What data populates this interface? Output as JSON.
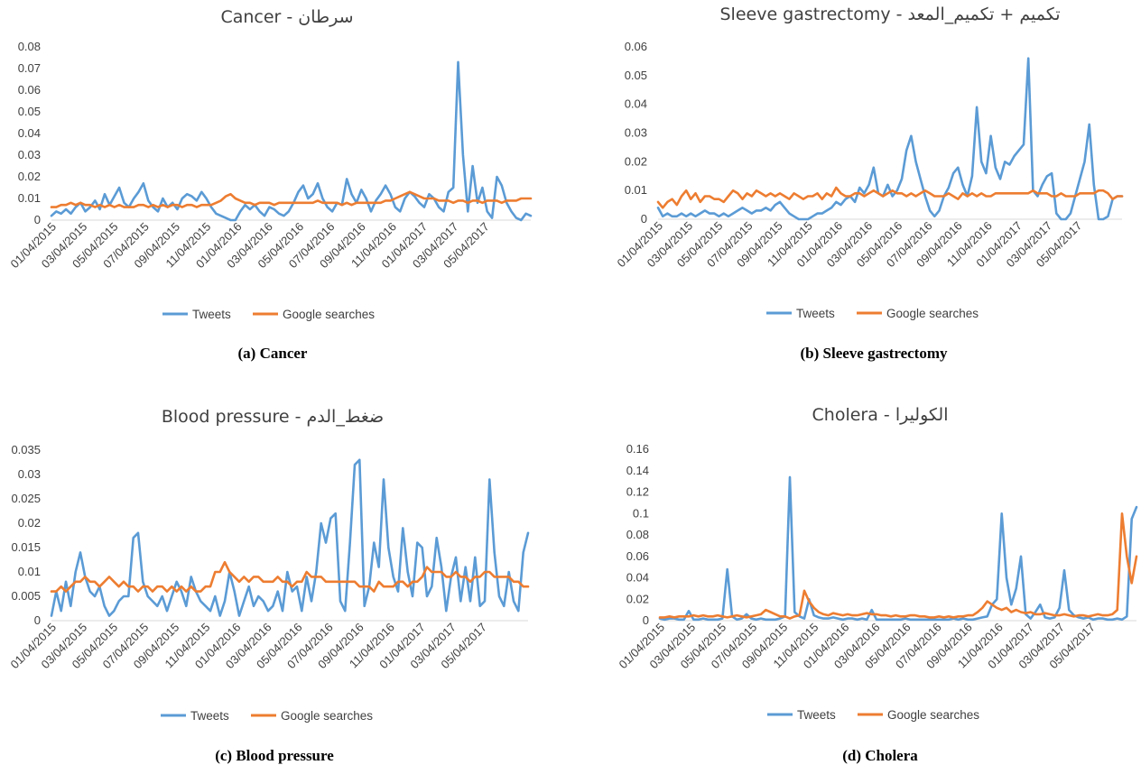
{
  "chart_data": [
    {
      "type": "line",
      "title": "Cancer - سرطان",
      "caption": "(a) Cancer",
      "x_ticks": [
        "01/04/2015",
        "03/04/2015",
        "05/04/2015",
        "07/04/2015",
        "09/04/2015",
        "11/04/2015",
        "01/04/2016",
        "03/04/2016",
        "05/04/2016",
        "07/04/2016",
        "09/04/2016",
        "11/04/2016",
        "01/04/2017",
        "03/04/2017",
        "05/04/2017"
      ],
      "y_ticks": [
        "0",
        "0.01",
        "0.02",
        "0.03",
        "0.04",
        "0.05",
        "0.06",
        "0.07",
        "0.08"
      ],
      "ylim": [
        0,
        0.08
      ],
      "legend_position": "bottom",
      "series": [
        {
          "name": "Tweets",
          "color": "#5B9BD5",
          "values": [
            0.002,
            0.004,
            0.003,
            0.005,
            0.003,
            0.006,
            0.008,
            0.004,
            0.006,
            0.009,
            0.005,
            0.012,
            0.007,
            0.011,
            0.015,
            0.008,
            0.006,
            0.01,
            0.013,
            0.017,
            0.009,
            0.006,
            0.004,
            0.01,
            0.006,
            0.008,
            0.005,
            0.01,
            0.012,
            0.011,
            0.009,
            0.013,
            0.01,
            0.006,
            0.003,
            0.002,
            0.001,
            0.0,
            0.0,
            0.004,
            0.007,
            0.005,
            0.007,
            0.004,
            0.002,
            0.006,
            0.005,
            0.003,
            0.002,
            0.004,
            0.008,
            0.013,
            0.016,
            0.01,
            0.012,
            0.017,
            0.01,
            0.006,
            0.004,
            0.008,
            0.007,
            0.019,
            0.012,
            0.008,
            0.014,
            0.01,
            0.004,
            0.009,
            0.012,
            0.016,
            0.012,
            0.006,
            0.004,
            0.01,
            0.013,
            0.011,
            0.008,
            0.006,
            0.012,
            0.01,
            0.006,
            0.004,
            0.013,
            0.015,
            0.073,
            0.03,
            0.004,
            0.025,
            0.008,
            0.015,
            0.004,
            0.001,
            0.02,
            0.016,
            0.008,
            0.004,
            0.001,
            0.0,
            0.003,
            0.002
          ]
        },
        {
          "name": "Google searches",
          "color": "#ED7D31",
          "values": [
            0.006,
            0.006,
            0.007,
            0.007,
            0.008,
            0.007,
            0.008,
            0.007,
            0.007,
            0.006,
            0.007,
            0.006,
            0.007,
            0.006,
            0.007,
            0.006,
            0.006,
            0.006,
            0.007,
            0.007,
            0.006,
            0.007,
            0.006,
            0.007,
            0.006,
            0.007,
            0.007,
            0.006,
            0.007,
            0.007,
            0.006,
            0.007,
            0.007,
            0.007,
            0.008,
            0.009,
            0.011,
            0.012,
            0.01,
            0.009,
            0.008,
            0.008,
            0.007,
            0.008,
            0.008,
            0.008,
            0.007,
            0.008,
            0.008,
            0.008,
            0.008,
            0.008,
            0.008,
            0.008,
            0.008,
            0.009,
            0.008,
            0.008,
            0.008,
            0.008,
            0.007,
            0.008,
            0.007,
            0.008,
            0.008,
            0.008,
            0.008,
            0.008,
            0.008,
            0.009,
            0.009,
            0.01,
            0.011,
            0.012,
            0.013,
            0.012,
            0.011,
            0.01,
            0.01,
            0.01,
            0.009,
            0.009,
            0.009,
            0.008,
            0.009,
            0.009,
            0.008,
            0.009,
            0.009,
            0.008,
            0.009,
            0.009,
            0.009,
            0.008,
            0.009,
            0.009,
            0.009,
            0.01,
            0.01,
            0.01
          ]
        }
      ]
    },
    {
      "type": "line",
      "title": "Sleeve gastrectomy - تكميم + تكميم_المعد",
      "caption": "(b) Sleeve gastrectomy",
      "x_ticks": [
        "01/04/2015",
        "03/04/2015",
        "05/04/2015",
        "07/04/2015",
        "09/04/2015",
        "11/04/2015",
        "01/04/2016",
        "03/04/2016",
        "05/04/2016",
        "07/04/2016",
        "09/04/2016",
        "11/04/2016",
        "01/04/2017",
        "03/04/2017",
        "05/04/2017"
      ],
      "y_ticks": [
        "0",
        "0.01",
        "0.02",
        "0.03",
        "0.04",
        "0.05",
        "0.06"
      ],
      "ylim": [
        0,
        0.06
      ],
      "legend_position": "bottom",
      "series": [
        {
          "name": "Tweets",
          "color": "#5B9BD5",
          "values": [
            0.004,
            0.001,
            0.002,
            0.001,
            0.001,
            0.002,
            0.001,
            0.002,
            0.001,
            0.002,
            0.003,
            0.002,
            0.002,
            0.001,
            0.002,
            0.001,
            0.002,
            0.003,
            0.004,
            0.003,
            0.002,
            0.003,
            0.003,
            0.004,
            0.003,
            0.005,
            0.006,
            0.004,
            0.002,
            0.001,
            0.0,
            0.0,
            0.0,
            0.001,
            0.002,
            0.002,
            0.003,
            0.004,
            0.006,
            0.005,
            0.007,
            0.008,
            0.006,
            0.011,
            0.009,
            0.012,
            0.018,
            0.009,
            0.008,
            0.012,
            0.008,
            0.01,
            0.014,
            0.024,
            0.029,
            0.02,
            0.014,
            0.008,
            0.003,
            0.001,
            0.003,
            0.008,
            0.011,
            0.016,
            0.018,
            0.012,
            0.008,
            0.015,
            0.039,
            0.02,
            0.016,
            0.029,
            0.018,
            0.014,
            0.02,
            0.019,
            0.022,
            0.024,
            0.026,
            0.056,
            0.01,
            0.008,
            0.012,
            0.015,
            0.016,
            0.002,
            0.0,
            0.0,
            0.002,
            0.008,
            0.014,
            0.02,
            0.033,
            0.012,
            0.0,
            0.0,
            0.001,
            0.007,
            0.008,
            0.008
          ]
        },
        {
          "name": "Google searches",
          "color": "#ED7D31",
          "values": [
            0.006,
            0.004,
            0.006,
            0.007,
            0.005,
            0.008,
            0.01,
            0.007,
            0.009,
            0.006,
            0.008,
            0.008,
            0.007,
            0.007,
            0.006,
            0.008,
            0.01,
            0.009,
            0.007,
            0.009,
            0.008,
            0.01,
            0.009,
            0.008,
            0.009,
            0.008,
            0.009,
            0.008,
            0.007,
            0.009,
            0.008,
            0.007,
            0.008,
            0.008,
            0.009,
            0.007,
            0.009,
            0.008,
            0.011,
            0.009,
            0.008,
            0.008,
            0.009,
            0.009,
            0.008,
            0.009,
            0.01,
            0.009,
            0.008,
            0.009,
            0.01,
            0.009,
            0.009,
            0.008,
            0.009,
            0.008,
            0.009,
            0.01,
            0.009,
            0.008,
            0.008,
            0.008,
            0.009,
            0.008,
            0.007,
            0.009,
            0.008,
            0.009,
            0.008,
            0.009,
            0.008,
            0.008,
            0.009,
            0.009,
            0.009,
            0.009,
            0.009,
            0.009,
            0.009,
            0.009,
            0.01,
            0.009,
            0.009,
            0.009,
            0.008,
            0.008,
            0.009,
            0.008,
            0.008,
            0.008,
            0.009,
            0.009,
            0.009,
            0.009,
            0.01,
            0.01,
            0.009,
            0.007,
            0.008,
            0.008
          ]
        }
      ]
    },
    {
      "type": "line",
      "title": "Blood pressure - ضغط_الدم",
      "caption": "(c) Blood pressure",
      "x_ticks": [
        "01/04/2015",
        "03/04/2015",
        "05/04/2015",
        "07/04/2015",
        "09/04/2015",
        "11/04/2015",
        "01/04/2016",
        "03/04/2016",
        "05/04/2016",
        "07/04/2016",
        "09/04/2016",
        "11/04/2016",
        "01/04/2017",
        "03/04/2017",
        "05/04/2017"
      ],
      "y_ticks": [
        "0",
        "0.005",
        "0.01",
        "0.015",
        "0.02",
        "0.025",
        "0.03",
        "0.035"
      ],
      "ylim": [
        0,
        0.035
      ],
      "legend_position": "bottom",
      "series": [
        {
          "name": "Tweets",
          "color": "#5B9BD5",
          "values": [
            0.001,
            0.006,
            0.002,
            0.008,
            0.003,
            0.01,
            0.014,
            0.009,
            0.006,
            0.005,
            0.007,
            0.003,
            0.001,
            0.002,
            0.004,
            0.005,
            0.005,
            0.017,
            0.018,
            0.008,
            0.005,
            0.004,
            0.003,
            0.005,
            0.002,
            0.005,
            0.008,
            0.006,
            0.003,
            0.009,
            0.006,
            0.004,
            0.003,
            0.002,
            0.005,
            0.001,
            0.004,
            0.01,
            0.006,
            0.001,
            0.004,
            0.007,
            0.003,
            0.005,
            0.004,
            0.002,
            0.003,
            0.006,
            0.002,
            0.01,
            0.006,
            0.007,
            0.002,
            0.009,
            0.004,
            0.01,
            0.02,
            0.016,
            0.021,
            0.022,
            0.004,
            0.002,
            0.016,
            0.032,
            0.033,
            0.003,
            0.007,
            0.016,
            0.011,
            0.029,
            0.015,
            0.009,
            0.006,
            0.019,
            0.01,
            0.005,
            0.016,
            0.015,
            0.005,
            0.007,
            0.017,
            0.011,
            0.002,
            0.009,
            0.013,
            0.004,
            0.011,
            0.004,
            0.013,
            0.003,
            0.004,
            0.029,
            0.014,
            0.005,
            0.003,
            0.01,
            0.004,
            0.002,
            0.014,
            0.018
          ]
        },
        {
          "name": "Google searches",
          "color": "#ED7D31",
          "values": [
            0.006,
            0.006,
            0.007,
            0.006,
            0.007,
            0.008,
            0.008,
            0.009,
            0.008,
            0.008,
            0.007,
            0.008,
            0.009,
            0.008,
            0.007,
            0.008,
            0.007,
            0.007,
            0.006,
            0.007,
            0.007,
            0.006,
            0.007,
            0.007,
            0.006,
            0.007,
            0.006,
            0.007,
            0.006,
            0.007,
            0.006,
            0.006,
            0.007,
            0.007,
            0.01,
            0.01,
            0.012,
            0.01,
            0.009,
            0.008,
            0.009,
            0.008,
            0.009,
            0.009,
            0.008,
            0.008,
            0.008,
            0.009,
            0.008,
            0.008,
            0.007,
            0.008,
            0.008,
            0.01,
            0.009,
            0.009,
            0.009,
            0.008,
            0.008,
            0.008,
            0.008,
            0.008,
            0.008,
            0.008,
            0.007,
            0.007,
            0.007,
            0.006,
            0.008,
            0.007,
            0.007,
            0.007,
            0.008,
            0.008,
            0.007,
            0.008,
            0.008,
            0.009,
            0.011,
            0.01,
            0.01,
            0.01,
            0.009,
            0.009,
            0.01,
            0.009,
            0.009,
            0.008,
            0.009,
            0.009,
            0.01,
            0.01,
            0.009,
            0.009,
            0.009,
            0.009,
            0.008,
            0.008,
            0.007,
            0.007
          ]
        }
      ]
    },
    {
      "type": "line",
      "title": "Cholera - الكوليرا",
      "caption": "(d) Cholera",
      "x_ticks": [
        "01/04/2015",
        "03/04/2015",
        "05/04/2015",
        "07/04/2015",
        "09/04/2015",
        "11/04/2015",
        "01/04/2016",
        "03/04/2016",
        "05/04/2016",
        "07/04/2016",
        "09/04/2016",
        "11/04/2016",
        "01/04/2017",
        "03/04/2017",
        "05/04/2017"
      ],
      "y_ticks": [
        "0",
        "0.02",
        "0.04",
        "0.06",
        "0.08",
        "0.1",
        "0.12",
        "0.14",
        "0.16"
      ],
      "ylim": [
        0,
        0.16
      ],
      "legend_position": "bottom",
      "series": [
        {
          "name": "Tweets",
          "color": "#5B9BD5",
          "values": [
            0.002,
            0.001,
            0.002,
            0.002,
            0.001,
            0.001,
            0.009,
            0.001,
            0.001,
            0.002,
            0.001,
            0.001,
            0.001,
            0.002,
            0.048,
            0.004,
            0.001,
            0.002,
            0.006,
            0.002,
            0.001,
            0.002,
            0.001,
            0.001,
            0.001,
            0.002,
            0.004,
            0.134,
            0.008,
            0.004,
            0.002,
            0.02,
            0.005,
            0.003,
            0.002,
            0.002,
            0.003,
            0.002,
            0.001,
            0.002,
            0.002,
            0.001,
            0.002,
            0.001,
            0.01,
            0.001,
            0.001,
            0.001,
            0.001,
            0.001,
            0.001,
            0.002,
            0.001,
            0.001,
            0.001,
            0.001,
            0.001,
            0.001,
            0.001,
            0.001,
            0.001,
            0.002,
            0.001,
            0.002,
            0.001,
            0.001,
            0.002,
            0.003,
            0.004,
            0.015,
            0.02,
            0.1,
            0.04,
            0.015,
            0.03,
            0.06,
            0.006,
            0.002,
            0.008,
            0.015,
            0.003,
            0.002,
            0.003,
            0.012,
            0.047,
            0.01,
            0.005,
            0.003,
            0.002,
            0.003,
            0.001,
            0.002,
            0.002,
            0.001,
            0.001,
            0.002,
            0.001,
            0.004,
            0.095,
            0.106
          ]
        },
        {
          "name": "Google searches",
          "color": "#ED7D31",
          "values": [
            0.003,
            0.003,
            0.004,
            0.003,
            0.004,
            0.004,
            0.004,
            0.005,
            0.004,
            0.005,
            0.004,
            0.004,
            0.005,
            0.004,
            0.003,
            0.004,
            0.005,
            0.004,
            0.003,
            0.004,
            0.005,
            0.006,
            0.01,
            0.008,
            0.006,
            0.004,
            0.004,
            0.002,
            0.004,
            0.005,
            0.028,
            0.018,
            0.012,
            0.008,
            0.006,
            0.005,
            0.007,
            0.006,
            0.005,
            0.006,
            0.005,
            0.005,
            0.006,
            0.007,
            0.006,
            0.006,
            0.005,
            0.005,
            0.004,
            0.005,
            0.004,
            0.004,
            0.005,
            0.005,
            0.004,
            0.004,
            0.003,
            0.003,
            0.004,
            0.003,
            0.004,
            0.003,
            0.004,
            0.004,
            0.005,
            0.005,
            0.008,
            0.012,
            0.018,
            0.015,
            0.012,
            0.01,
            0.012,
            0.008,
            0.01,
            0.008,
            0.007,
            0.008,
            0.006,
            0.006,
            0.007,
            0.006,
            0.005,
            0.005,
            0.006,
            0.005,
            0.004,
            0.005,
            0.005,
            0.004,
            0.005,
            0.006,
            0.005,
            0.005,
            0.006,
            0.01,
            0.1,
            0.06,
            0.035,
            0.06
          ]
        }
      ]
    }
  ]
}
